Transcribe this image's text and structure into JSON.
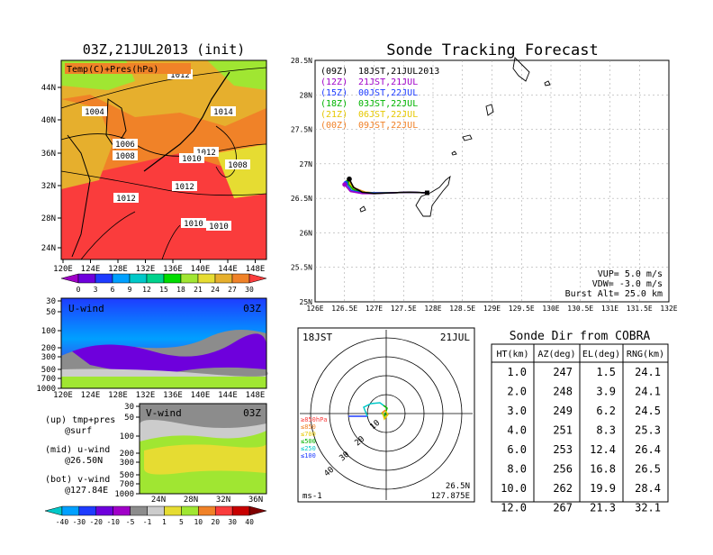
{
  "map_panel": {
    "title": "03Z,21JUL2013 (init)",
    "field_label": "Temp(C)+Pres(hPa)",
    "lat_labels": [
      "44N",
      "40N",
      "36N",
      "32N",
      "28N",
      "24N"
    ],
    "lon_labels": [
      "120E",
      "124E",
      "128E",
      "132E",
      "136E",
      "140E",
      "144E",
      "148E"
    ],
    "pressure_labels": [
      "1012",
      "1004",
      "1014",
      "1006",
      "1008",
      "1012",
      "1010",
      "1012",
      "1008",
      "1012",
      "1012",
      "1010",
      "1010"
    ],
    "colorbar_ticks": [
      "0",
      "3",
      "6",
      "9",
      "12",
      "15",
      "18",
      "21",
      "24",
      "27",
      "30"
    ],
    "colorbar_colors": [
      "#a000c8",
      "#6e00dc",
      "#1e3cff",
      "#00a0ff",
      "#00c8c8",
      "#00d28c",
      "#00dc00",
      "#a0e632",
      "#e6dc32",
      "#e6af2d",
      "#f08228",
      "#fa3c3c"
    ]
  },
  "uwind_panel": {
    "title": "U-wind",
    "time_label": "03Z",
    "p_labels": [
      "30",
      "50",
      "100",
      "200",
      "300",
      "500",
      "700",
      "1000"
    ],
    "lon_labels": [
      "120E",
      "124E",
      "128E",
      "132E",
      "136E",
      "140E",
      "144E",
      "148E"
    ]
  },
  "vwind_panel": {
    "title": "V-wind",
    "time_label": "03Z",
    "p_labels": [
      "30",
      "50",
      "100",
      "200",
      "300",
      "500",
      "700",
      "1000"
    ],
    "lat_labels": [
      "24N",
      "28N",
      "32N",
      "36N"
    ]
  },
  "legend_notes": [
    "(up) tmp+pres",
    "@surf",
    "(mid) u-wind",
    "@26.50N",
    "(bot) v-wind",
    "@127.84E"
  ],
  "wind_colorbar": {
    "ticks": [
      "-40",
      "-30",
      "-20",
      "-10",
      "-5",
      "-1",
      "1",
      "5",
      "10",
      "20",
      "30",
      "40"
    ],
    "colors": [
      "#00c8c8",
      "#00a0ff",
      "#1e3cff",
      "#6e00dc",
      "#a000c8",
      "#8c8c8c",
      "#cccccc",
      "#e6dc32",
      "#a0e632",
      "#f08228",
      "#fa3c3c",
      "#c80000"
    ]
  },
  "tracking": {
    "title": "Sonde Tracking Forecast",
    "launches": [
      {
        "code": "(09Z)",
        "time": "18JST,21JUL2013",
        "color": "#000000"
      },
      {
        "code": "(12Z)",
        "time": "21JST,21JUL",
        "color": "#a000c8"
      },
      {
        "code": "(15Z)",
        "time": "00JST,22JUL",
        "color": "#1e3cff"
      },
      {
        "code": "(18Z)",
        "time": "03JST,22JUL",
        "color": "#00b400"
      },
      {
        "code": "(21Z)",
        "time": "06JST,22JUL",
        "color": "#e6c800"
      },
      {
        "code": "(00Z)",
        "time": "09JST,22JUL",
        "color": "#f08228"
      }
    ],
    "lat_labels": [
      "28.5N",
      "28N",
      "27.5N",
      "27N",
      "26.5N",
      "26N",
      "25.5N",
      "25N"
    ],
    "lon_labels": [
      "126E",
      "126.5E",
      "127E",
      "127.5E",
      "128E",
      "128.5E",
      "129E",
      "129.5E",
      "130E",
      "130.5E",
      "131E",
      "131.5E",
      "132E"
    ],
    "vup": "VUP= 5.0 m/s",
    "vdw": "VDW= -3.0 m/s",
    "burst": "Burst Alt= 25.0 km"
  },
  "polar": {
    "time_label": "18JST",
    "date_label": "21JUL",
    "range_labels": [
      "10",
      "20",
      "30",
      "40"
    ],
    "level_labels": [
      {
        "text": "≥850hPa",
        "color": "#fa3c3c"
      },
      {
        "text": "≤850",
        "color": "#f08228"
      },
      {
        "text": "≤700",
        "color": "#e6c800"
      },
      {
        "text": "≤500",
        "color": "#00b400"
      },
      {
        "text": "≤250",
        "color": "#00c8c8"
      },
      {
        "text": "≤100",
        "color": "#1e3cff"
      }
    ],
    "units": "ms-1",
    "lat": "26.5N",
    "lon": "127.875E"
  },
  "dir_table": {
    "title": "Sonde Dir from COBRA",
    "headers": [
      "HT(km)",
      "AZ(deg)",
      "EL(deg)",
      "RNG(km)"
    ],
    "rows": [
      [
        "1.0",
        "247",
        "1.5",
        "24.1"
      ],
      [
        "2.0",
        "248",
        "3.9",
        "24.1"
      ],
      [
        "3.0",
        "249",
        "6.2",
        "24.5"
      ],
      [
        "4.0",
        "251",
        "8.3",
        "25.3"
      ],
      [
        "6.0",
        "253",
        "12.4",
        "26.4"
      ],
      [
        "8.0",
        "256",
        "16.8",
        "26.5"
      ],
      [
        "10.0",
        "262",
        "19.9",
        "28.4"
      ],
      [
        "12.0",
        "267",
        "21.3",
        "32.1"
      ]
    ]
  },
  "chart_data": {
    "type": "table",
    "title": "Sonde Dir from COBRA",
    "columns": [
      "HT(km)",
      "AZ(deg)",
      "EL(deg)",
      "RNG(km)"
    ],
    "rows": [
      [
        1.0,
        247,
        1.5,
        24.1
      ],
      [
        2.0,
        248,
        3.9,
        24.1
      ],
      [
        3.0,
        249,
        6.2,
        24.5
      ],
      [
        4.0,
        251,
        8.3,
        25.3
      ],
      [
        6.0,
        253,
        12.4,
        26.4
      ],
      [
        8.0,
        256,
        16.8,
        26.5
      ],
      [
        10.0,
        262,
        19.9,
        28.4
      ],
      [
        12.0,
        267,
        21.3,
        32.1
      ]
    ],
    "map": {
      "xlim": [
        120,
        150
      ],
      "ylim": [
        22,
        48
      ],
      "temperature_range_C": [
        0,
        30
      ]
    },
    "tracking_map": {
      "type": "line",
      "xlim": [
        126,
        132
      ],
      "ylim": [
        25,
        28.5
      ],
      "launch_point": [
        126.58,
        26.78
      ],
      "series": [
        {
          "name": "18JST,21JUL2013",
          "x": [
            126.58,
            126.65,
            126.8,
            127.0,
            127.3,
            127.6,
            127.9
          ],
          "y": [
            26.78,
            26.66,
            26.59,
            26.57,
            26.58,
            26.59,
            26.58
          ]
        },
        {
          "name": "21JST,21JUL",
          "x": [
            126.5,
            126.6,
            126.8,
            127.0,
            127.3,
            127.6,
            127.9
          ],
          "y": [
            26.7,
            26.6,
            26.57,
            26.57,
            26.58,
            26.59,
            26.58
          ]
        },
        {
          "name": "00JST,22JUL",
          "x": [
            126.52,
            126.62,
            126.8,
            127.0,
            127.3,
            127.6,
            127.9
          ],
          "y": [
            26.72,
            26.61,
            26.58,
            26.58,
            26.58,
            26.59,
            26.58
          ]
        },
        {
          "name": "03JST,22JUL",
          "x": [
            126.54,
            126.64,
            126.82,
            127.0,
            127.3,
            127.6,
            127.9
          ],
          "y": [
            26.73,
            26.63,
            26.58,
            26.58,
            26.58,
            26.59,
            26.58
          ]
        },
        {
          "name": "06JST,22JUL",
          "x": [
            126.56,
            126.66,
            126.84,
            127.0,
            127.3,
            127.6,
            127.9
          ],
          "y": [
            26.74,
            26.64,
            26.59,
            26.58,
            26.58,
            26.59,
            26.58
          ]
        },
        {
          "name": "09JST,22JUL",
          "x": [
            126.57,
            126.67,
            126.85,
            127.0,
            127.3,
            127.6,
            127.9
          ],
          "y": [
            26.75,
            26.65,
            26.59,
            26.58,
            26.58,
            26.59,
            26.58
          ]
        }
      ],
      "annotations": [
        "VUP= 5.0 m/s",
        "VDW= -3.0 m/s",
        "Burst Alt= 25.0 km"
      ]
    }
  }
}
